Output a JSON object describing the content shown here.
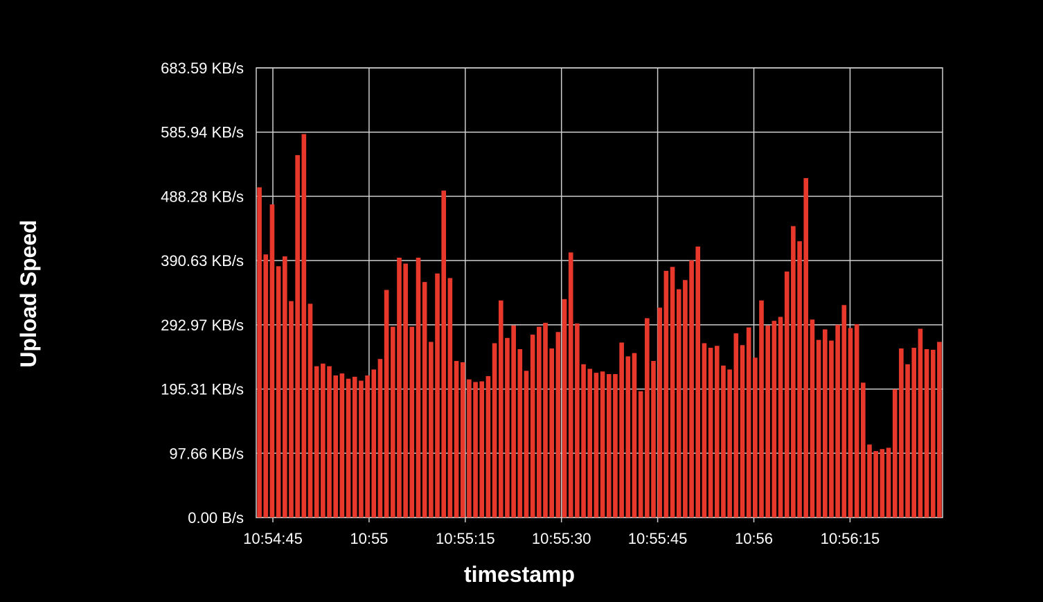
{
  "chart_data": {
    "type": "bar",
    "title": "",
    "xlabel": "timestamp",
    "ylabel": "Upload Speed",
    "y_unit": "KB/s",
    "ylim": [
      0,
      683.59
    ],
    "y_ticks": [
      {
        "value": 0,
        "label": "0.00 B/s"
      },
      {
        "value": 97.66,
        "label": "97.66 KB/s"
      },
      {
        "value": 195.31,
        "label": "195.31 KB/s"
      },
      {
        "value": 292.97,
        "label": "292.97 KB/s"
      },
      {
        "value": 390.63,
        "label": "390.63 KB/s"
      },
      {
        "value": 488.28,
        "label": "488.28 KB/s"
      },
      {
        "value": 585.94,
        "label": "585.94 KB/s"
      },
      {
        "value": 683.59,
        "label": "683.59 KB/s"
      }
    ],
    "x_ticks": [
      "10:54:45",
      "10:55",
      "10:55:15",
      "10:55:30",
      "10:55:45",
      "10:56",
      "10:56:15"
    ],
    "grid": true,
    "legend": "none",
    "colors": {
      "background": "#000000",
      "bar": "#e8382c",
      "grid": "#cfcfcf",
      "text": "#ffffff"
    },
    "values": [
      502,
      400,
      476,
      382,
      397,
      329,
      551,
      583,
      325,
      230,
      234,
      230,
      216,
      219,
      211,
      214,
      208,
      216,
      225,
      241,
      346,
      290,
      395,
      386,
      290,
      395,
      358,
      267,
      371,
      497,
      364,
      238,
      236,
      210,
      206,
      207,
      215,
      265,
      330,
      273,
      292,
      256,
      223,
      278,
      290,
      296,
      257,
      282,
      332,
      403,
      295,
      233,
      226,
      220,
      222,
      218,
      218,
      266,
      245,
      250,
      192,
      303,
      238,
      319,
      375,
      381,
      347,
      361,
      391,
      412,
      265,
      258,
      261,
      231,
      225,
      280,
      262,
      289,
      243,
      330,
      292,
      299,
      305,
      374,
      443,
      420,
      516,
      301,
      270,
      286,
      269,
      293,
      323,
      288,
      294,
      205,
      111,
      101,
      104,
      106,
      195,
      257,
      233,
      258,
      287,
      256,
      255,
      267
    ]
  }
}
